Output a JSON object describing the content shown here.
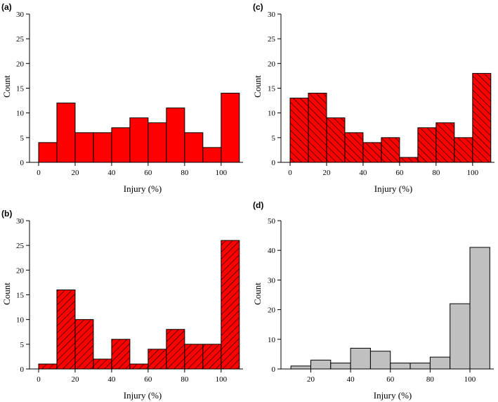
{
  "figure": {
    "x_unit_label": "Injury (%)",
    "y_label": "Count"
  },
  "colors": {
    "red": "#ff0000",
    "gray": "#c0c0c0",
    "hatch": "#000000"
  },
  "chart_data": [
    {
      "type": "bar",
      "panel": "(a)",
      "fill": "solid-red",
      "title": "",
      "xlabel": "Injury (%)",
      "ylabel": "Count",
      "bins_left": [
        0,
        10,
        20,
        30,
        40,
        50,
        60,
        70,
        80,
        90,
        100
      ],
      "bin_width": 10,
      "values": [
        4,
        12,
        6,
        6,
        7,
        9,
        8,
        11,
        6,
        3,
        14
      ],
      "xlim": [
        -5,
        112
      ],
      "ylim": [
        0,
        30
      ],
      "xticks": [
        0,
        20,
        40,
        60,
        80,
        100
      ],
      "yticks": [
        0,
        5,
        10,
        15,
        20,
        25,
        30
      ]
    },
    {
      "type": "bar",
      "panel": "(b)",
      "fill": "red-hatch-back",
      "title": "",
      "xlabel": "Injury (%)",
      "ylabel": "Count",
      "bins_left": [
        0,
        10,
        20,
        30,
        40,
        50,
        60,
        70,
        80,
        90,
        100
      ],
      "bin_width": 10,
      "values": [
        1,
        16,
        10,
        2,
        6,
        1,
        4,
        8,
        5,
        5,
        26
      ],
      "xlim": [
        -5,
        112
      ],
      "ylim": [
        0,
        30
      ],
      "xticks": [
        0,
        20,
        40,
        60,
        80,
        100
      ],
      "yticks": [
        0,
        5,
        10,
        15,
        20,
        25,
        30
      ]
    },
    {
      "type": "bar",
      "panel": "(c)",
      "fill": "red-hatch-fwd",
      "title": "",
      "xlabel": "Injury (%)",
      "ylabel": "Count",
      "bins_left": [
        0,
        10,
        20,
        30,
        40,
        50,
        60,
        70,
        80,
        90,
        100
      ],
      "bin_width": 10,
      "values": [
        13,
        14,
        9,
        6,
        4,
        5,
        1,
        7,
        8,
        5,
        18
      ],
      "xlim": [
        -5,
        112
      ],
      "ylim": [
        0,
        30
      ],
      "xticks": [
        0,
        20,
        40,
        60,
        80,
        100
      ],
      "yticks": [
        0,
        5,
        10,
        15,
        20,
        25,
        30
      ]
    },
    {
      "type": "bar",
      "panel": "(d)",
      "fill": "gray",
      "title": "",
      "xlabel": "Injury (%)",
      "ylabel": "Count",
      "bins_left": [
        10,
        20,
        30,
        40,
        50,
        60,
        70,
        80,
        90,
        100
      ],
      "bin_width": 10,
      "values": [
        1,
        3,
        2,
        7,
        6,
        2,
        2,
        4,
        22,
        41
      ],
      "xlim": [
        5,
        112
      ],
      "ylim": [
        0,
        50
      ],
      "xticks": [
        20,
        40,
        60,
        80,
        100
      ],
      "yticks": [
        0,
        10,
        20,
        30,
        40,
        50
      ]
    }
  ]
}
